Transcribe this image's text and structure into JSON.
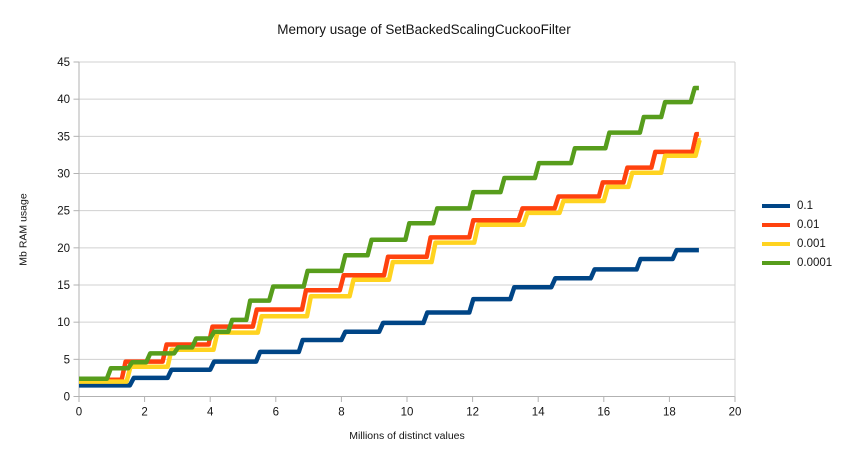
{
  "title": "Memory usage of SetBackedScalingCuckooFilter",
  "colors": {
    "background": "#ffffff",
    "grid": "#d0d0d0",
    "axis": "#b2b2b2",
    "text": "#141414"
  },
  "chart_data": {
    "type": "line",
    "subtype": "step",
    "title": "Memory usage of SetBackedScalingCuckooFilter",
    "xlabel": "Millions of distinct values",
    "ylabel": "Mb RAM usage",
    "xlim": [
      0,
      20
    ],
    "ylim": [
      0,
      45
    ],
    "x_ticks": [
      0,
      2,
      4,
      6,
      8,
      10,
      12,
      14,
      16,
      18,
      20
    ],
    "y_ticks": [
      0,
      5,
      10,
      15,
      20,
      25,
      30,
      35,
      40,
      45
    ],
    "grid": "horizontal",
    "legend_position": "right",
    "series": [
      {
        "name": "0.1",
        "color": "#004586",
        "end_x": 18.9,
        "steps": [
          [
            0,
            1.5
          ],
          [
            1.55,
            2.5
          ],
          [
            2.7,
            3.6
          ],
          [
            4.0,
            4.7
          ],
          [
            5.4,
            6.0
          ],
          [
            6.7,
            7.6
          ],
          [
            8.0,
            8.7
          ],
          [
            9.15,
            9.9
          ],
          [
            10.5,
            11.3
          ],
          [
            11.9,
            13.1
          ],
          [
            13.15,
            14.7
          ],
          [
            14.4,
            15.9
          ],
          [
            15.6,
            17.1
          ],
          [
            17.0,
            18.5
          ],
          [
            18.1,
            19.7
          ]
        ]
      },
      {
        "name": "0.01",
        "color": "#FF420E",
        "end_x": 18.9,
        "steps": [
          [
            0,
            2.25
          ],
          [
            1.3,
            4.7
          ],
          [
            2.55,
            7.0
          ],
          [
            3.95,
            9.4
          ],
          [
            5.3,
            11.7
          ],
          [
            6.8,
            14.3
          ],
          [
            7.95,
            16.3
          ],
          [
            9.3,
            18.8
          ],
          [
            10.6,
            21.4
          ],
          [
            11.9,
            23.7
          ],
          [
            13.4,
            25.3
          ],
          [
            14.5,
            26.9
          ],
          [
            15.85,
            28.8
          ],
          [
            16.6,
            30.8
          ],
          [
            17.45,
            32.9
          ],
          [
            18.7,
            35.3
          ]
        ]
      },
      {
        "name": "0.001",
        "color": "#FFD320",
        "end_x": 18.95,
        "steps": [
          [
            0,
            2.0
          ],
          [
            1.45,
            4.0
          ],
          [
            2.7,
            6.3
          ],
          [
            4.1,
            8.6
          ],
          [
            5.45,
            10.8
          ],
          [
            6.95,
            13.5
          ],
          [
            8.25,
            15.7
          ],
          [
            9.45,
            18.1
          ],
          [
            10.75,
            20.7
          ],
          [
            12.05,
            23.1
          ],
          [
            13.55,
            24.7
          ],
          [
            14.65,
            26.3
          ],
          [
            16.0,
            28.2
          ],
          [
            16.75,
            30.1
          ],
          [
            17.75,
            32.4
          ],
          [
            18.8,
            34.5
          ]
        ]
      },
      {
        "name": "0.0001",
        "color": "#579D1C",
        "end_x": 18.9,
        "steps": [
          [
            0,
            2.4
          ],
          [
            0.85,
            3.8
          ],
          [
            1.5,
            4.6
          ],
          [
            2.05,
            5.8
          ],
          [
            2.9,
            6.6
          ],
          [
            3.45,
            7.8
          ],
          [
            4.0,
            8.7
          ],
          [
            4.55,
            10.3
          ],
          [
            5.1,
            12.9
          ],
          [
            5.8,
            14.8
          ],
          [
            6.85,
            16.9
          ],
          [
            8.0,
            19.0
          ],
          [
            8.8,
            21.1
          ],
          [
            9.95,
            23.3
          ],
          [
            10.8,
            25.3
          ],
          [
            11.9,
            27.5
          ],
          [
            12.85,
            29.4
          ],
          [
            13.9,
            31.4
          ],
          [
            15.0,
            33.4
          ],
          [
            16.05,
            35.5
          ],
          [
            17.1,
            37.6
          ],
          [
            17.75,
            39.6
          ],
          [
            18.65,
            41.5
          ]
        ]
      }
    ]
  }
}
